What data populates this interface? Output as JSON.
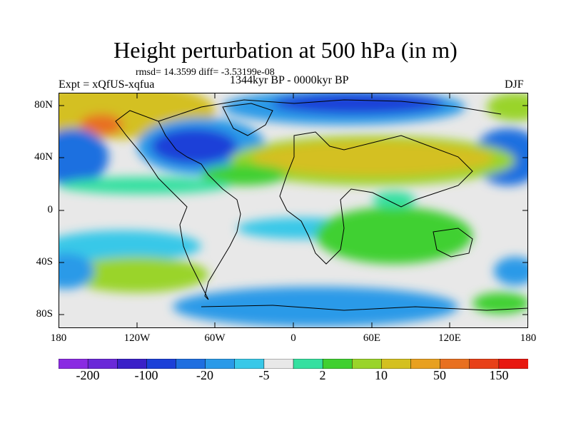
{
  "title": "Height perturbation at 500 hPa (in m)",
  "stats_line": "rmsd= 14.3599 diff= -3.53199e-08",
  "expt_label": "Expt = xQfUS-xqfua",
  "period_label": "1344kyr BP - 0000kyr BP",
  "season_label": "DJF",
  "lat_ticks": [
    "80N",
    "40N",
    "0",
    "40S",
    "80S"
  ],
  "lon_ticks": [
    "180",
    "120W",
    "60W",
    "0",
    "60E",
    "120E",
    "180"
  ],
  "colorbar": {
    "colors": [
      "#8a2be2",
      "#6a28d8",
      "#3a20c8",
      "#1c40d8",
      "#1f6fe0",
      "#2a9ae8",
      "#38c8e8",
      "#e8e8e8",
      "#35e0a0",
      "#40d030",
      "#9ad42a",
      "#d4c020",
      "#e8a020",
      "#e87020",
      "#e84018",
      "#e81810"
    ],
    "labels": [
      "-200",
      "-100",
      "-20",
      "-5",
      "2",
      "10",
      "50",
      "150"
    ]
  }
}
